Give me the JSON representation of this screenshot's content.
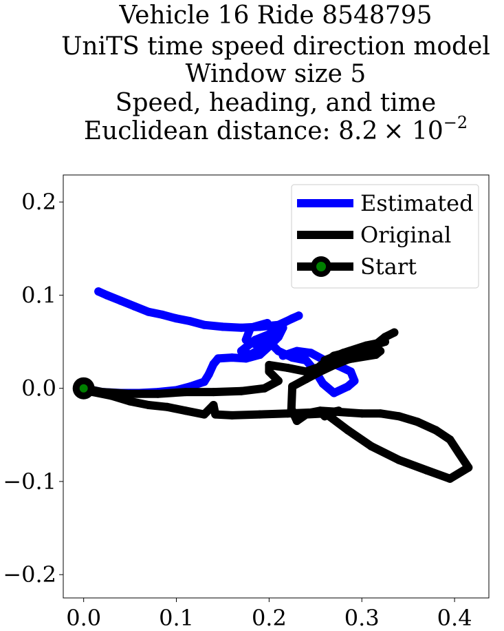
{
  "chart_data": {
    "type": "line",
    "title_lines": [
      "Vehicle 16 Ride 8548795",
      "UniTS time speed direction model",
      "Window size 5",
      "Speed, heading, and time",
      "Euclidean distance: 8.2"
    ],
    "title_exponent_base": "× 10",
    "title_exponent": "−2",
    "xlim": [
      -0.022,
      0.437
    ],
    "ylim": [
      -0.225,
      0.229
    ],
    "xticks": [
      {
        "value": 0.0,
        "label": "0.0"
      },
      {
        "value": 0.1,
        "label": "0.1"
      },
      {
        "value": 0.2,
        "label": "0.2"
      },
      {
        "value": 0.3,
        "label": "0.3"
      },
      {
        "value": 0.4,
        "label": "0.4"
      }
    ],
    "yticks": [
      {
        "value": 0.2,
        "label": "0.2"
      },
      {
        "value": 0.1,
        "label": "0.1"
      },
      {
        "value": 0.0,
        "label": "0.0"
      },
      {
        "value": -0.1,
        "label": "−0.1"
      },
      {
        "value": -0.2,
        "label": "−0.2"
      }
    ],
    "grid": false,
    "legend_position": "top-right",
    "series": [
      {
        "name": "Estimated",
        "color": "#0000ff",
        "points": [
          [
            0.0,
            0.0
          ],
          [
            0.02,
            -0.004
          ],
          [
            0.04,
            -0.005
          ],
          [
            0.06,
            -0.005
          ],
          [
            0.08,
            -0.004
          ],
          [
            0.1,
            -0.002
          ],
          [
            0.115,
            0.002
          ],
          [
            0.13,
            0.007
          ],
          [
            0.135,
            0.015
          ],
          [
            0.14,
            0.026
          ],
          [
            0.145,
            0.032
          ],
          [
            0.16,
            0.033
          ],
          [
            0.175,
            0.032
          ],
          [
            0.19,
            0.036
          ],
          [
            0.2,
            0.045
          ],
          [
            0.21,
            0.055
          ],
          [
            0.215,
            0.065
          ],
          [
            0.205,
            0.05
          ],
          [
            0.19,
            0.045
          ],
          [
            0.175,
            0.052
          ],
          [
            0.18,
            0.065
          ],
          [
            0.198,
            0.07
          ],
          [
            0.205,
            0.06
          ],
          [
            0.195,
            0.045
          ],
          [
            0.18,
            0.036
          ],
          [
            0.17,
            0.04
          ],
          [
            0.185,
            0.052
          ],
          [
            0.2,
            0.058
          ],
          [
            0.215,
            0.07
          ],
          [
            0.225,
            0.075
          ],
          [
            0.232,
            0.078
          ],
          [
            0.21,
            0.068
          ],
          [
            0.19,
            0.066
          ],
          [
            0.17,
            0.065
          ],
          [
            0.15,
            0.066
          ],
          [
            0.13,
            0.068
          ],
          [
            0.115,
            0.072
          ],
          [
            0.1,
            0.075
          ],
          [
            0.085,
            0.079
          ],
          [
            0.07,
            0.082
          ],
          [
            0.055,
            0.088
          ],
          [
            0.04,
            0.094
          ],
          [
            0.025,
            0.1
          ],
          [
            0.016,
            0.104
          ]
        ]
      },
      {
        "name": "Estimated",
        "color": "#0000ff",
        "points": [
          [
            0.215,
            0.035
          ],
          [
            0.23,
            0.04
          ],
          [
            0.245,
            0.038
          ],
          [
            0.26,
            0.03
          ],
          [
            0.275,
            0.024
          ],
          [
            0.288,
            0.018
          ],
          [
            0.292,
            0.008
          ],
          [
            0.285,
            0.002
          ],
          [
            0.27,
            -0.005
          ],
          [
            0.258,
            0.005
          ],
          [
            0.25,
            0.018
          ],
          [
            0.24,
            0.03
          ],
          [
            0.225,
            0.033
          ],
          [
            0.21,
            0.04
          ],
          [
            0.2,
            0.05
          ]
        ]
      },
      {
        "name": "Original",
        "color": "#000000",
        "points": [
          [
            0.0,
            0.0
          ],
          [
            0.01,
            -0.004
          ],
          [
            0.03,
            -0.008
          ],
          [
            0.05,
            -0.014
          ],
          [
            0.07,
            -0.018
          ],
          [
            0.09,
            -0.02
          ],
          [
            0.11,
            -0.024
          ],
          [
            0.13,
            -0.028
          ],
          [
            0.14,
            -0.018
          ],
          [
            0.142,
            -0.028
          ],
          [
            0.16,
            -0.029
          ],
          [
            0.19,
            -0.028
          ],
          [
            0.22,
            -0.027
          ],
          [
            0.245,
            -0.026
          ],
          [
            0.255,
            -0.024
          ],
          [
            0.27,
            -0.025
          ],
          [
            0.3,
            -0.027
          ],
          [
            0.32,
            -0.027
          ],
          [
            0.34,
            -0.03
          ],
          [
            0.36,
            -0.036
          ],
          [
            0.38,
            -0.045
          ],
          [
            0.395,
            -0.055
          ],
          [
            0.405,
            -0.07
          ],
          [
            0.415,
            -0.085
          ],
          [
            0.395,
            -0.097
          ],
          [
            0.37,
            -0.088
          ],
          [
            0.34,
            -0.077
          ],
          [
            0.31,
            -0.062
          ],
          [
            0.285,
            -0.045
          ],
          [
            0.265,
            -0.03
          ],
          [
            0.255,
            -0.025
          ],
          [
            0.26,
            -0.03
          ],
          [
            0.275,
            -0.024
          ],
          [
            0.26,
            -0.027
          ],
          [
            0.24,
            -0.028
          ],
          [
            0.23,
            -0.035
          ],
          [
            0.224,
            -0.022
          ],
          [
            0.225,
            0.002
          ],
          [
            0.24,
            0.01
          ],
          [
            0.255,
            0.018
          ],
          [
            0.27,
            0.025
          ],
          [
            0.29,
            0.033
          ],
          [
            0.31,
            0.043
          ],
          [
            0.325,
            0.055
          ],
          [
            0.335,
            0.06
          ]
        ]
      },
      {
        "name": "Original",
        "color": "#000000",
        "points": [
          [
            0.0,
            0.0
          ],
          [
            0.02,
            -0.004
          ],
          [
            0.05,
            -0.006
          ],
          [
            0.08,
            -0.006
          ],
          [
            0.11,
            -0.004
          ],
          [
            0.14,
            -0.004
          ],
          [
            0.17,
            -0.003
          ],
          [
            0.195,
            0.0
          ],
          [
            0.21,
            0.008
          ],
          [
            0.2,
            0.018
          ],
          [
            0.2,
            0.025
          ],
          [
            0.22,
            0.022
          ],
          [
            0.24,
            0.018
          ],
          [
            0.26,
            0.025
          ],
          [
            0.28,
            0.032
          ],
          [
            0.3,
            0.038
          ],
          [
            0.32,
            0.04
          ],
          [
            0.315,
            0.036
          ],
          [
            0.29,
            0.032
          ],
          [
            0.27,
            0.028
          ],
          [
            0.255,
            0.024
          ],
          [
            0.27,
            0.035
          ],
          [
            0.29,
            0.04
          ],
          [
            0.31,
            0.045
          ],
          [
            0.325,
            0.05
          ],
          [
            0.305,
            0.046
          ],
          [
            0.28,
            0.038
          ],
          [
            0.26,
            0.03
          ]
        ]
      }
    ],
    "start_point": {
      "name": "Start",
      "x": 0.0,
      "y": 0.0,
      "outer_color": "#000000",
      "inner_color": "#008000"
    },
    "legend": [
      {
        "label": "Estimated",
        "color": "#0000ff",
        "marker": false
      },
      {
        "label": "Original",
        "color": "#000000",
        "marker": false
      },
      {
        "label": "Start",
        "color": "#000000",
        "marker": true,
        "marker_color": "#008000"
      }
    ]
  }
}
